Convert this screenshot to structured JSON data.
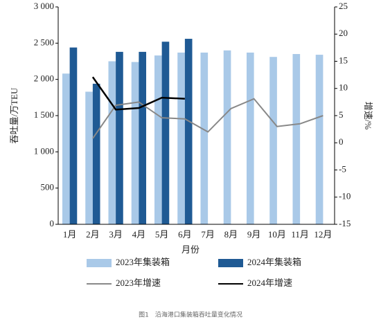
{
  "chart_data": {
    "type": "bar",
    "categories": [
      "1月",
      "2月",
      "3月",
      "4月",
      "5月",
      "6月",
      "7月",
      "8月",
      "9月",
      "10月",
      "11月",
      "12月"
    ],
    "series": [
      {
        "name": "2023年集装箱",
        "color": "#a9c9e8",
        "values": [
          2080,
          1830,
          2250,
          2240,
          2330,
          2370,
          2370,
          2400,
          2370,
          2310,
          2350,
          2340
        ]
      },
      {
        "name": "2024年集装箱",
        "color": "#1f5a94",
        "values": [
          2440,
          1940,
          2380,
          2380,
          2520,
          2560,
          null,
          null,
          null,
          null,
          null,
          null
        ]
      },
      {
        "name": "2023年增速",
        "type": "line",
        "axis": "y2",
        "color": "#888888",
        "values": [
          null,
          0.8,
          6.9,
          7.5,
          4.6,
          4.4,
          2.0,
          6.3,
          8.1,
          3.0,
          3.5,
          5.0
        ]
      },
      {
        "name": "2024年增速",
        "type": "line",
        "axis": "y2",
        "color": "#000000",
        "values": [
          null,
          12.1,
          6.1,
          6.4,
          8.3,
          8.1,
          null,
          null,
          null,
          null,
          null,
          null
        ]
      }
    ],
    "ylim": [
      0,
      3000
    ],
    "yticks": [
      0,
      500,
      {
        "value": 1000,
        "label": "1 000"
      },
      {
        "value": 1500,
        "label": "1 500"
      },
      {
        "value": 2000,
        "label": "2 000"
      },
      {
        "value": 2500,
        "label": "2 500"
      },
      {
        "value": 3000,
        "label": "3 000"
      }
    ],
    "y2lim": [
      -15,
      25
    ],
    "y2ticks": [
      -15,
      -10,
      -5,
      0,
      5,
      10,
      15,
      20,
      25
    ],
    "xlabel": "月份",
    "ylabel": "吞吐量/万TEU",
    "y2label": "增速/%",
    "caption": "图1　沿海港口集装箱吞吐量变化情况"
  }
}
